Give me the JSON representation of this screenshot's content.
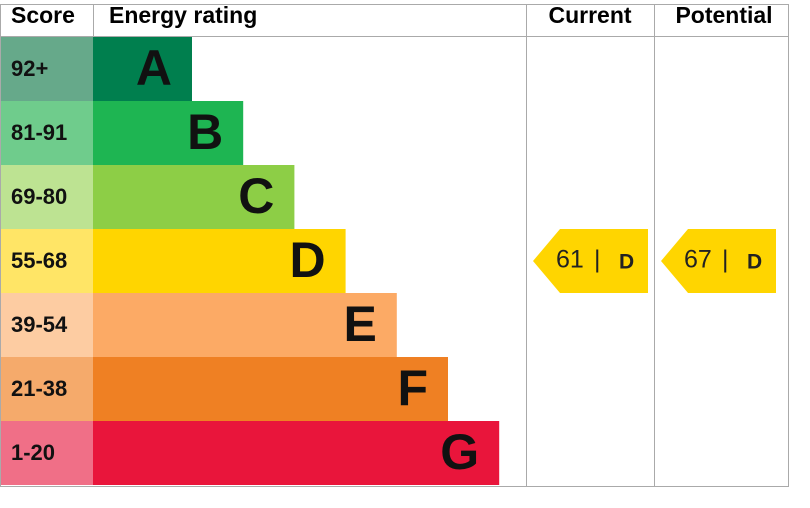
{
  "header": {
    "score": "Score",
    "rating": "Energy rating",
    "current": "Current",
    "potential": "Potential"
  },
  "rows": [
    {
      "score": "92+",
      "band": "A",
      "color": "#007f4e",
      "score_color": "#66a98a"
    },
    {
      "score": "81-91",
      "band": "B",
      "color": "#1eb552",
      "score_color": "#6fcc8c"
    },
    {
      "score": "69-80",
      "band": "C",
      "color": "#8dce46",
      "score_color": "#bde392"
    },
    {
      "score": "55-68",
      "band": "D",
      "color": "#ffd500",
      "score_color": "#ffe566"
    },
    {
      "score": "39-54",
      "band": "E",
      "color": "#fcaa65",
      "score_color": "#fdcca2"
    },
    {
      "score": "21-38",
      "band": "F",
      "color": "#ef8023",
      "score_color": "#f5aa6b"
    },
    {
      "score": "1-20",
      "band": "G",
      "color": "#e9153b",
      "score_color": "#f06f87"
    }
  ],
  "current": {
    "value": 61,
    "separator": "|",
    "band": "D"
  },
  "potential": {
    "value": 67,
    "separator": "|",
    "band": "D"
  }
}
